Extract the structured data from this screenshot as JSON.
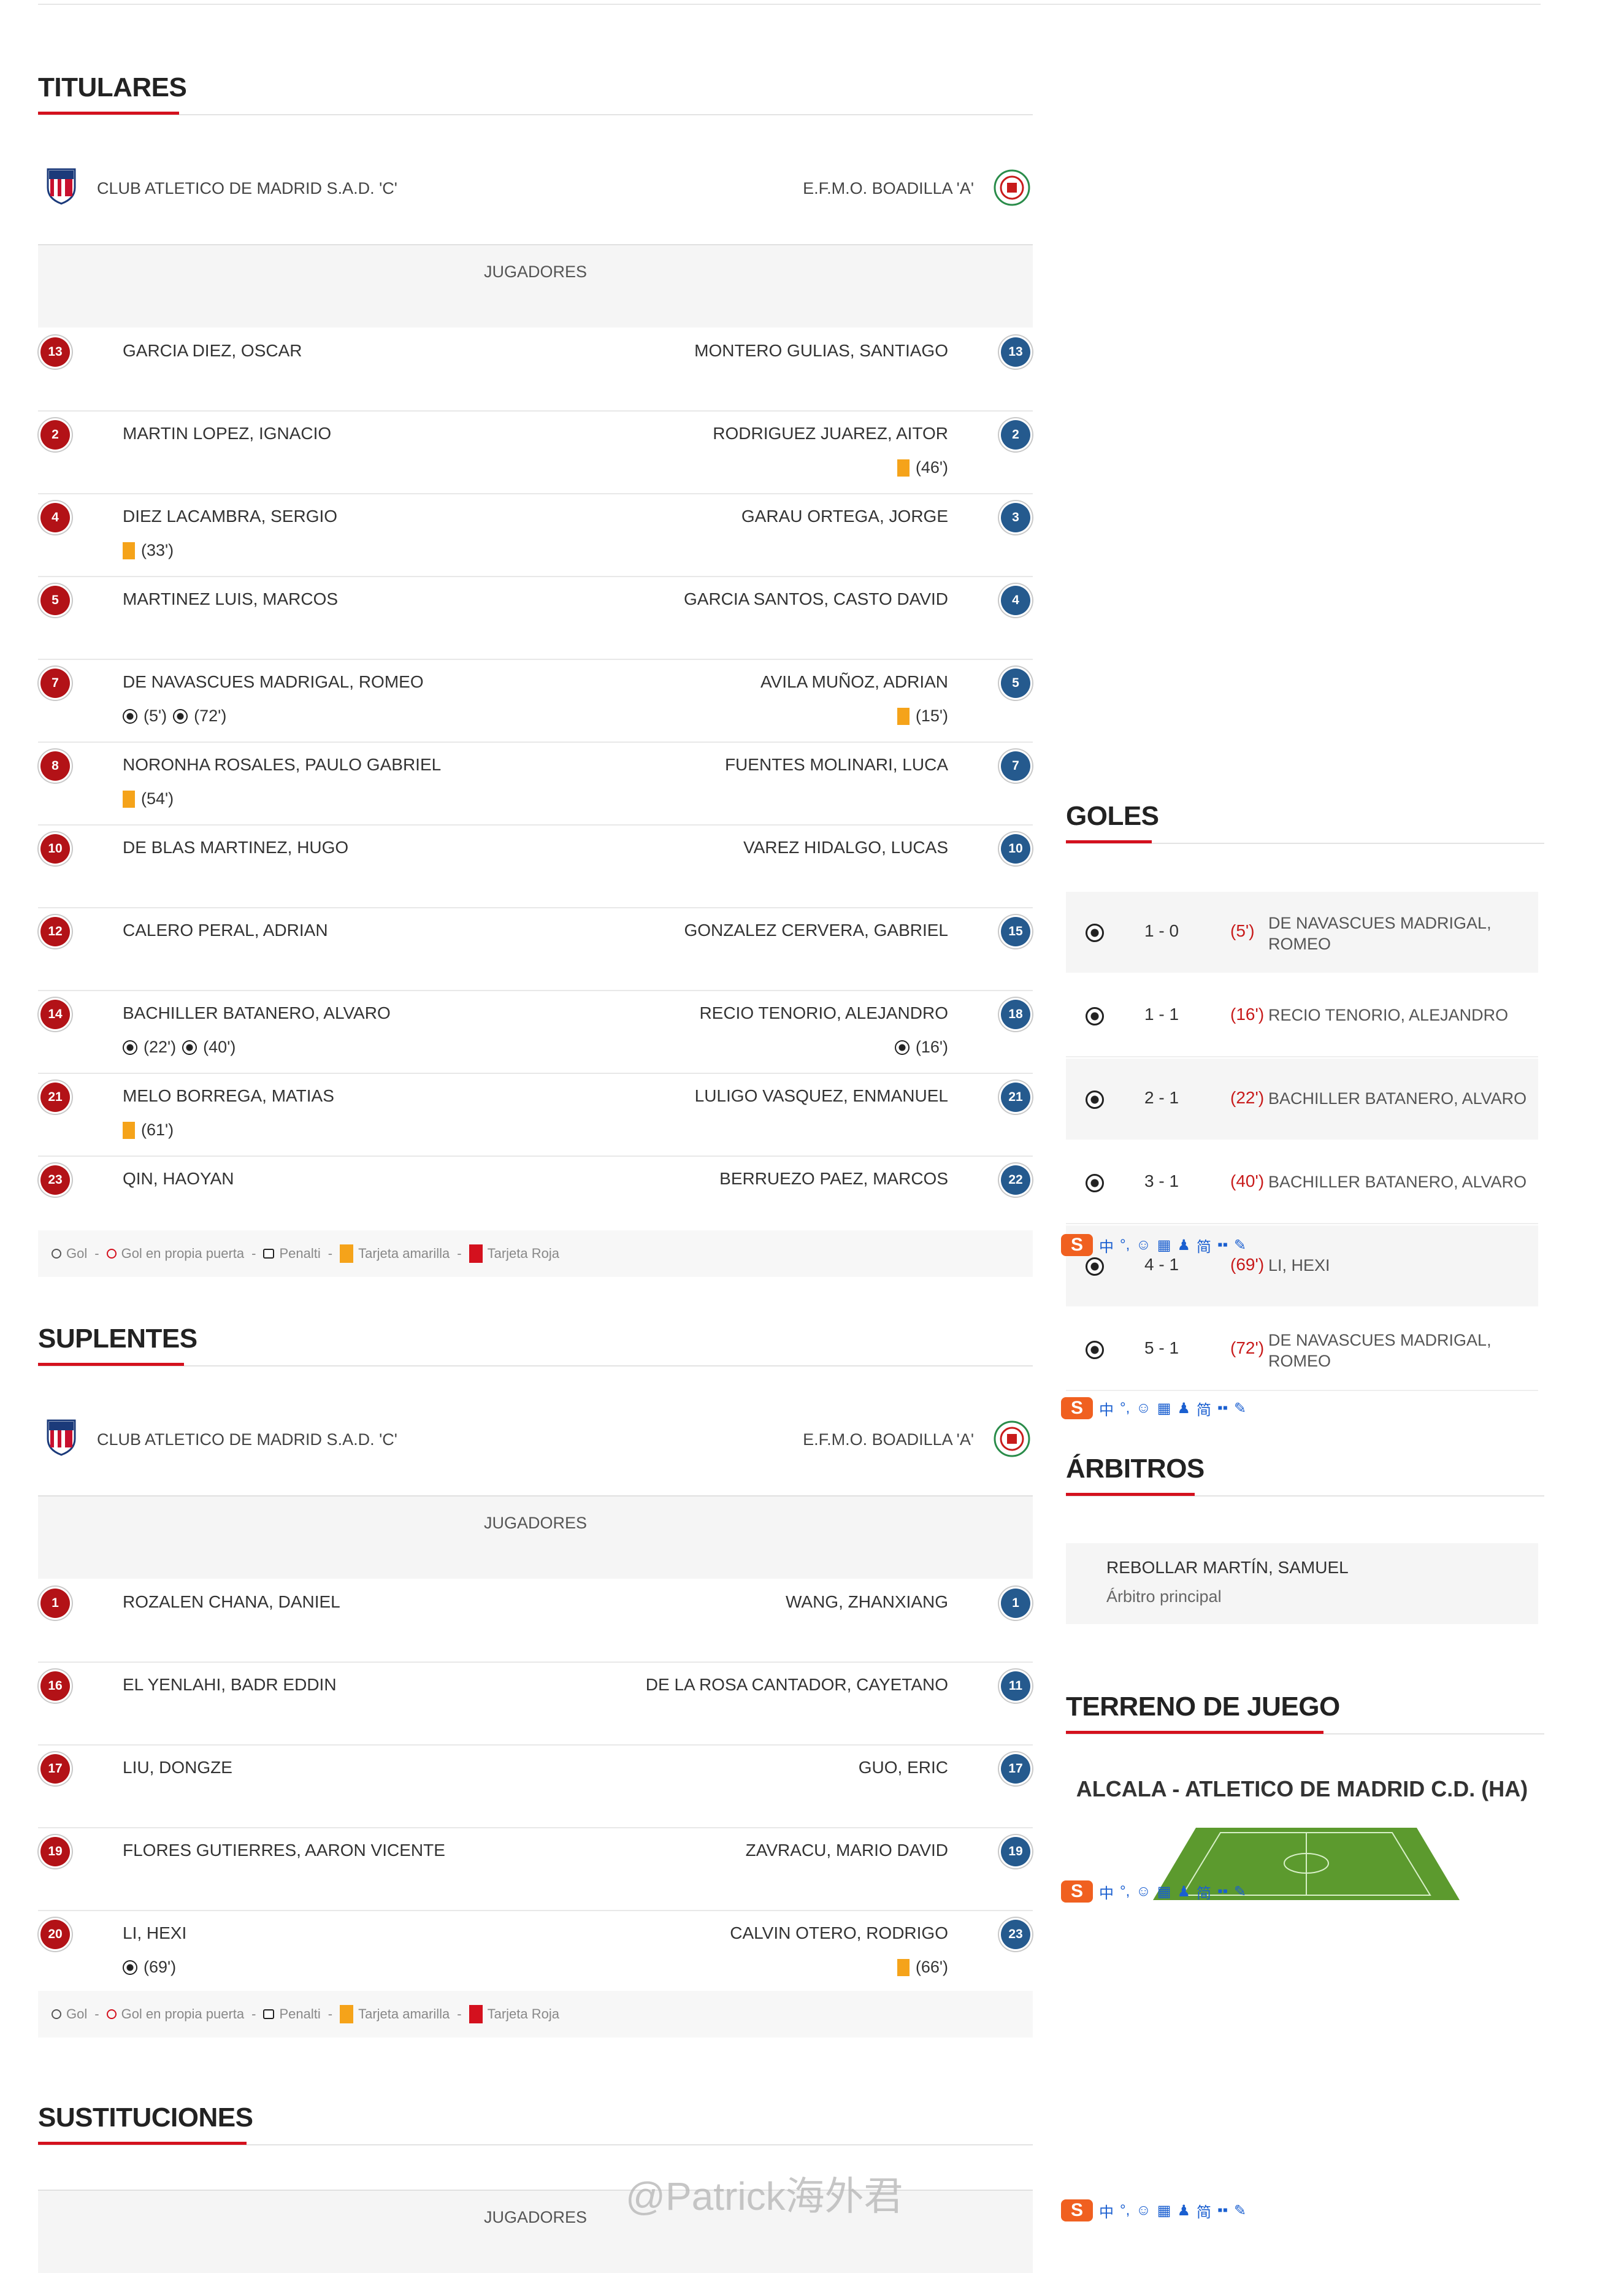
{
  "sections": {
    "titulares": "TITULARES",
    "suplentes": "SUPLENTES",
    "sustituciones": "SUSTITUCIONES",
    "goles": "GOLES",
    "arbitros": "ÁRBITROS",
    "terreno": "TERRENO DE JUEGO"
  },
  "teams": {
    "home": "CLUB ATLETICO DE MADRID S.A.D. 'C'",
    "away": "E.F.M.O. BOADILLA 'A'"
  },
  "jugadores_label": "JUGADORES",
  "starters": [
    {
      "hn": "13",
      "home": "GARCIA DIEZ, OSCAR",
      "an": "13",
      "away": "MONTERO GULIAS, SANTIAGO"
    },
    {
      "hn": "2",
      "home": "MARTIN LOPEZ, IGNACIO",
      "an": "2",
      "away": "RODRIGUEZ JUAREZ, AITOR",
      "away_ev": [
        {
          "t": "yellow",
          "m": "(46')"
        }
      ]
    },
    {
      "hn": "4",
      "home": "DIEZ LACAMBRA, SERGIO",
      "home_ev": [
        {
          "t": "yellow",
          "m": "(33')"
        }
      ],
      "an": "3",
      "away": "GARAU ORTEGA, JORGE"
    },
    {
      "hn": "5",
      "home": "MARTINEZ LUIS, MARCOS",
      "an": "4",
      "away": "GARCIA SANTOS, CASTO DAVID"
    },
    {
      "hn": "7",
      "home": "DE NAVASCUES MADRIGAL, ROMEO",
      "home_ev": [
        {
          "t": "goal",
          "m": "(5')"
        },
        {
          "t": "goal",
          "m": "(72')"
        }
      ],
      "an": "5",
      "away": "AVILA MUÑOZ, ADRIAN",
      "away_ev": [
        {
          "t": "yellow",
          "m": "(15')"
        }
      ]
    },
    {
      "hn": "8",
      "home": "NORONHA ROSALES, PAULO GABRIEL",
      "home_ev": [
        {
          "t": "yellow",
          "m": "(54')"
        }
      ],
      "an": "7",
      "away": "FUENTES MOLINARI, LUCA"
    },
    {
      "hn": "10",
      "home": "DE BLAS MARTINEZ, HUGO",
      "an": "10",
      "away": "VAREZ HIDALGO, LUCAS"
    },
    {
      "hn": "12",
      "home": "CALERO PERAL, ADRIAN",
      "an": "15",
      "away": "GONZALEZ CERVERA, GABRIEL"
    },
    {
      "hn": "14",
      "home": "BACHILLER BATANERO, ALVARO",
      "home_ev": [
        {
          "t": "goal",
          "m": "(22')"
        },
        {
          "t": "goal",
          "m": "(40')"
        }
      ],
      "an": "18",
      "away": "RECIO TENORIO, ALEJANDRO",
      "away_ev": [
        {
          "t": "goal",
          "m": "(16')"
        }
      ]
    },
    {
      "hn": "21",
      "home": "MELO BORREGA, MATIAS",
      "home_ev": [
        {
          "t": "yellow",
          "m": "(61')"
        }
      ],
      "an": "21",
      "away": "LULIGO VASQUEZ, ENMANUEL"
    },
    {
      "hn": "23",
      "home": "QIN, HAOYAN",
      "an": "22",
      "away": "BERRUEZO PAEZ, MARCOS"
    }
  ],
  "subs": [
    {
      "hn": "1",
      "home": "ROZALEN CHANA, DANIEL",
      "an": "1",
      "away": "WANG, ZHANXIANG"
    },
    {
      "hn": "16",
      "home": "EL YENLAHI, BADR EDDIN",
      "an": "11",
      "away": "DE LA ROSA CANTADOR, CAYETANO"
    },
    {
      "hn": "17",
      "home": "LIU, DONGZE",
      "an": "17",
      "away": "GUO, ERIC"
    },
    {
      "hn": "19",
      "home": "FLORES GUTIERRES, AARON VICENTE",
      "an": "19",
      "away": "ZAVRACU, MARIO DAVID"
    },
    {
      "hn": "20",
      "home": "LI, HEXI",
      "home_ev": [
        {
          "t": "goal",
          "m": "(69')"
        }
      ],
      "an": "23",
      "away": "CALVIN OTERO, RODRIGO",
      "away_ev": [
        {
          "t": "yellow",
          "m": "(66')"
        }
      ]
    }
  ],
  "legend": {
    "sep": "-",
    "gol": "Gol",
    "own": "Gol en propia puerta",
    "pen": "Penalti",
    "yellow": "Tarjeta amarilla",
    "red": "Tarjeta Roja"
  },
  "goals": [
    {
      "score": "1 - 0",
      "min": "(5')",
      "scorer": "DE NAVASCUES MADRIGAL, ROMEO"
    },
    {
      "score": "1 - 1",
      "min": "(16')",
      "scorer": "RECIO TENORIO, ALEJANDRO"
    },
    {
      "score": "2 - 1",
      "min": "(22')",
      "scorer": "BACHILLER BATANERO, ALVARO"
    },
    {
      "score": "3 - 1",
      "min": "(40')",
      "scorer": "BACHILLER BATANERO, ALVARO"
    },
    {
      "score": "4 - 1",
      "min": "(69')",
      "scorer": "LI, HEXI"
    },
    {
      "score": "5 - 1",
      "min": "(72')",
      "scorer": "DE NAVASCUES MADRIGAL, ROMEO"
    }
  ],
  "referee": {
    "name": "REBOLLAR MARTÍN, SAMUEL",
    "role": "Árbitro principal"
  },
  "venue": "ALCALA - ATLETICO DE MADRID C.D. (HA)",
  "ime": {
    "logo": "S",
    "items": [
      "中",
      "°,",
      "☺",
      "▦",
      "♟",
      "简",
      "▪▪",
      "✎"
    ]
  },
  "watermark": "@Patrick海外君",
  "colors": {
    "accent": "#d4111e",
    "home_num": "#b31217",
    "away_num": "#255a8e",
    "yellow": "#f5a31a"
  }
}
